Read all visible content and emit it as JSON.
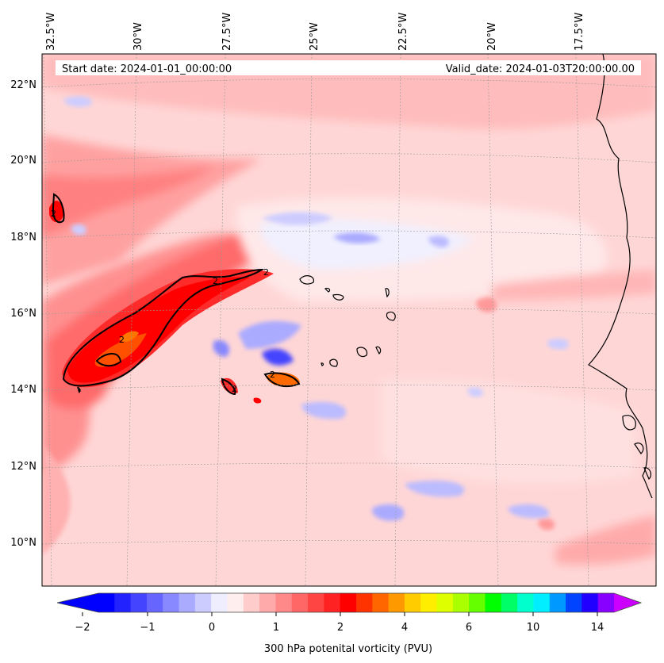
{
  "header": {
    "start_date": "Start date: 2024-01-01_00:00:00",
    "valid_date": "Valid_date: 2024-01-03T20:00:00.00"
  },
  "axes": {
    "lon_labels": [
      "32.5°W",
      "30°W",
      "27.5°W",
      "25°W",
      "22.5°W",
      "20°W",
      "17.5°W"
    ],
    "lat_labels": [
      "22°N",
      "20°N",
      "18°N",
      "16°N",
      "14°N",
      "12°N",
      "10°N"
    ]
  },
  "colorbar": {
    "ticks": [
      "−2",
      "−1",
      "0",
      "1",
      "2",
      "4",
      "6",
      "10",
      "14"
    ],
    "label": "300 hPa potenital vorticity (PVU)",
    "colors": [
      "#0000ff",
      "#2222ff",
      "#4444ff",
      "#6666ff",
      "#8888ff",
      "#aaaaff",
      "#ccccff",
      "#eeeeff",
      "#ffeeee",
      "#ffcccc",
      "#ffaaaa",
      "#ff8888",
      "#ff6666",
      "#ff4444",
      "#ff2222",
      "#ff0000",
      "#ff3300",
      "#ff6600",
      "#ff9900",
      "#ffcc00",
      "#ffee00",
      "#ddff00",
      "#aaff00",
      "#66ff00",
      "#00ff00",
      "#00ff66",
      "#00ffcc",
      "#00eeff",
      "#0099ff",
      "#0044ff",
      "#2200ff",
      "#8800ff"
    ],
    "under_color": "#0000ff",
    "over_color": "#cc00ff"
  },
  "contours": {
    "label": "2",
    "value_pvu": 2
  }
}
